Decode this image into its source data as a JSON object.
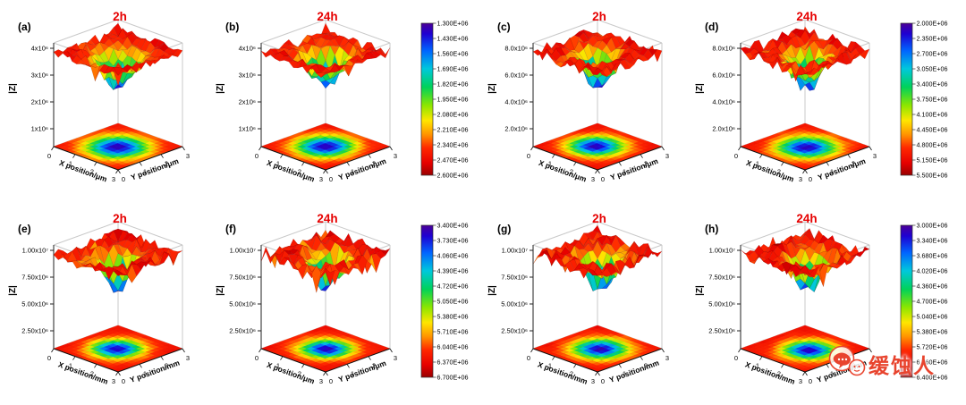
{
  "figure": {
    "watermark": {
      "text": "缓蚀人",
      "icon": "wechat-chat-bubbles-icon",
      "color": "#e8442e"
    }
  },
  "chart_data": {
    "type": "surface3d-grid",
    "layout": "2 rows x 4 panels; each panel is a 3D |Z| surface with a projected 2D contour map on the base plane; a shared vertical color scale follows each pair of panels",
    "colormap_description": "rainbow: dark red/red = high |Z|, yellow-green = mid, blue/purple = low |Z|; color scales list the minimum at the top",
    "colormap_stops": [
      {
        "t": 0.0,
        "color": "#4b0096"
      },
      {
        "t": 0.07,
        "color": "#1e00d2"
      },
      {
        "t": 0.18,
        "color": "#0064ff"
      },
      {
        "t": 0.3,
        "color": "#00c8dc"
      },
      {
        "t": 0.42,
        "color": "#00d25a"
      },
      {
        "t": 0.54,
        "color": "#8ce600"
      },
      {
        "t": 0.64,
        "color": "#ffe600"
      },
      {
        "t": 0.73,
        "color": "#ff9600"
      },
      {
        "t": 0.82,
        "color": "#ff2800"
      },
      {
        "t": 0.92,
        "color": "#e60000"
      },
      {
        "t": 1.0,
        "color": "#990000"
      }
    ],
    "title_color": "#e60000",
    "colorbars": [
      {
        "id": "cb1",
        "applies_to": [
          "(a)",
          "(b)"
        ],
        "values_top_to_bottom": [
          "1.300E+06",
          "1.430E+06",
          "1.560E+06",
          "1.690E+06",
          "1.820E+06",
          "1.950E+06",
          "2.080E+06",
          "2.210E+06",
          "2.340E+06",
          "2.470E+06",
          "2.600E+06"
        ]
      },
      {
        "id": "cb2",
        "applies_to": [
          "(c)",
          "(d)"
        ],
        "values_top_to_bottom": [
          "2.000E+06",
          "2.350E+06",
          "2.700E+06",
          "3.050E+06",
          "3.400E+06",
          "3.750E+06",
          "4.100E+06",
          "4.450E+06",
          "4.800E+06",
          "5.150E+06",
          "5.500E+06"
        ]
      },
      {
        "id": "cb3",
        "applies_to": [
          "(e)",
          "(f)"
        ],
        "values_top_to_bottom": [
          "3.400E+06",
          "3.730E+06",
          "4.060E+06",
          "4.390E+06",
          "4.720E+06",
          "5.050E+06",
          "5.380E+06",
          "5.710E+06",
          "6.040E+06",
          "6.370E+06",
          "6.700E+06"
        ]
      },
      {
        "id": "cb4",
        "applies_to": [
          "(g)",
          "(h)"
        ],
        "values_top_to_bottom": [
          "3.000E+06",
          "3.340E+06",
          "3.680E+06",
          "4.020E+06",
          "4.360E+06",
          "4.700E+06",
          "5.040E+06",
          "5.380E+06",
          "5.720E+06",
          "6.060E+06",
          "6.400E+06"
        ]
      }
    ],
    "panels": [
      {
        "id": "a",
        "label": "(a)",
        "title": "2h",
        "x_label": "X position/μm",
        "y_label": "Y position/μm",
        "z_label": "|Z|",
        "x_ticks": [
          "0",
          "1",
          "2",
          "3"
        ],
        "y_ticks": [
          "0",
          "1",
          "2",
          "3"
        ],
        "z_ticks_top_to_bottom": [
          "4x10⁶",
          "3x10⁶",
          "2x10⁶",
          "1x10⁶"
        ],
        "colorbar": "cb1",
        "surface_summary": {
          "plateau_value": "≈2.6x10⁶ (red)",
          "pit_minimum": "≈1.3x10⁶ (blue)",
          "pit_center_xy": [
            1.5,
            1.5
          ]
        },
        "render": {
          "seed": 11,
          "noise": 0.1,
          "pit": {
            "cx": 1.55,
            "cy": 1.45,
            "r": 0.85,
            "depth": 0.82
          }
        }
      },
      {
        "id": "b",
        "label": "(b)",
        "title": "24h",
        "x_label": "X position/μm",
        "y_label": "Y position/μm",
        "z_label": "|Z|",
        "x_ticks": [
          "0",
          "1",
          "2",
          "3"
        ],
        "y_ticks": [
          "0",
          "1",
          "2",
          "3"
        ],
        "z_ticks_top_to_bottom": [
          "4x10⁶",
          "3x10⁶",
          "2x10⁶",
          "1x10⁶"
        ],
        "colorbar": "cb1",
        "surface_summary": {
          "plateau_value": "≈2.6x10⁶ (red)",
          "pit_minimum": "≈1.3x10⁶ (blue)",
          "pit_center_xy": [
            1.5,
            1.5
          ]
        },
        "render": {
          "seed": 22,
          "noise": 0.11,
          "pit": {
            "cx": 1.5,
            "cy": 1.5,
            "r": 0.8,
            "depth": 0.85
          }
        }
      },
      {
        "id": "c",
        "label": "(c)",
        "title": "2h",
        "x_label": "X position/μm",
        "y_label": "Y position/μm",
        "z_label": "|Z|",
        "x_ticks": [
          "0",
          "1",
          "2",
          "3"
        ],
        "y_ticks": [
          "0",
          "1",
          "2",
          "3"
        ],
        "z_ticks_top_to_bottom": [
          "8.0x10⁶",
          "6.0x10⁶",
          "4.0x10⁶",
          "2.0x10⁶"
        ],
        "colorbar": "cb2",
        "surface_summary": {
          "plateau_value": "≈5.5x10⁶ (red)",
          "pit_minimum": "≈2.0x10⁶ (blue)",
          "pit_center_xy": [
            1.5,
            1.5
          ]
        },
        "render": {
          "seed": 33,
          "noise": 0.12,
          "pit": {
            "cx": 1.45,
            "cy": 1.5,
            "r": 0.75,
            "depth": 0.88
          }
        }
      },
      {
        "id": "d",
        "label": "(d)",
        "title": "24h",
        "x_label": "X position/μm",
        "y_label": "Y position/μm",
        "z_label": "|Z|",
        "x_ticks": [
          "0",
          "1",
          "2",
          "3"
        ],
        "y_ticks": [
          "0",
          "1",
          "2",
          "3"
        ],
        "z_ticks_top_to_bottom": [
          "8.0x10⁶",
          "6.0x10⁶",
          "4.0x10⁶",
          "2.0x10⁶"
        ],
        "colorbar": "cb2",
        "surface_summary": {
          "plateau_value": "≈5.5x10⁶ (red)",
          "pit_minimum": "≈2.0x10⁶ (blue)",
          "pit_center_xy": [
            1.6,
            1.5
          ]
        },
        "render": {
          "seed": 44,
          "noise": 0.13,
          "pit": {
            "cx": 1.6,
            "cy": 1.5,
            "r": 0.8,
            "depth": 0.86
          }
        }
      },
      {
        "id": "e",
        "label": "(e)",
        "title": "2h",
        "x_label": "X position/mm",
        "y_label": "Y position/mm",
        "z_label": "|Z|",
        "x_ticks": [
          "0",
          "1",
          "2",
          "3"
        ],
        "y_ticks": [
          "0",
          "1",
          "2",
          "3"
        ],
        "z_ticks_top_to_bottom": [
          "1.00x10⁷",
          "7.50x10⁶",
          "5.00x10⁶",
          "2.50x10⁶"
        ],
        "colorbar": "cb3",
        "surface_summary": {
          "plateau_value": "≈6.7x10⁶ (red)",
          "pit_minimum": "≈3.4x10⁶ (blue)",
          "pit_center_xy": [
            1.5,
            1.5
          ]
        },
        "render": {
          "seed": 55,
          "noise": 0.15,
          "pit": {
            "cx": 1.5,
            "cy": 1.45,
            "r": 0.7,
            "depth": 0.85
          }
        }
      },
      {
        "id": "f",
        "label": "(f)",
        "title": "24h",
        "x_label": "X position/μm",
        "y_label": "Y position/μm",
        "z_label": "|Z|",
        "x_ticks": [
          "0",
          "1",
          "2",
          "3"
        ],
        "y_ticks": [
          "0",
          "1",
          "2",
          "3"
        ],
        "z_ticks_top_to_bottom": [
          "1.00x10⁷",
          "7.50x10⁶",
          "5.00x10⁶",
          "2.50x10⁶"
        ],
        "colorbar": "cb3",
        "surface_summary": {
          "plateau_value": "≈6.7x10⁶ (red)",
          "pit_minimum": "≈3.4x10⁶ (blue)",
          "pit_center_xy": [
            1.55,
            1.5
          ]
        },
        "render": {
          "seed": 66,
          "noise": 0.15,
          "pit": {
            "cx": 1.55,
            "cy": 1.5,
            "r": 0.7,
            "depth": 0.83
          }
        }
      },
      {
        "id": "g",
        "label": "(g)",
        "title": "2h",
        "x_label": "X position/mm",
        "y_label": "Y position/mm",
        "z_label": "|Z|",
        "x_ticks": [
          "0",
          "1",
          "2",
          "3"
        ],
        "y_ticks": [
          "0",
          "1",
          "2",
          "3"
        ],
        "z_ticks_top_to_bottom": [
          "1.00x10⁷",
          "7.50x10⁶",
          "5.00x10⁶",
          "2.50x10⁶"
        ],
        "colorbar": "cb4",
        "surface_summary": {
          "plateau_value": "≈6.4x10⁶ (red)",
          "pit_minimum": "≈3.0x10⁶ (blue)",
          "pit_center_xy": [
            1.6,
            1.55
          ]
        },
        "render": {
          "seed": 77,
          "noise": 0.16,
          "pit": {
            "cx": 1.6,
            "cy": 1.55,
            "r": 0.75,
            "depth": 0.88
          }
        }
      },
      {
        "id": "h",
        "label": "(h)",
        "title": "24h",
        "x_label": "X position/mm",
        "y_label": "Y position/mm",
        "z_label": "|Z|",
        "x_ticks": [
          "0",
          "1",
          "2",
          "3"
        ],
        "y_ticks": [
          "0",
          "1",
          "2",
          "3"
        ],
        "z_ticks_top_to_bottom": [
          "1.00x10⁷",
          "7.50x10⁶",
          "5.00x10⁶",
          "2.50x10⁶"
        ],
        "colorbar": "cb4",
        "surface_summary": {
          "plateau_value": "≈6.4x10⁶ (red)",
          "pit_minimum": "≈3.0x10⁶ (blue)",
          "pit_center_xy": [
            1.7,
            1.5
          ]
        },
        "render": {
          "seed": 88,
          "noise": 0.15,
          "pit": {
            "cx": 1.7,
            "cy": 1.5,
            "r": 0.7,
            "depth": 0.86
          }
        }
      }
    ]
  }
}
